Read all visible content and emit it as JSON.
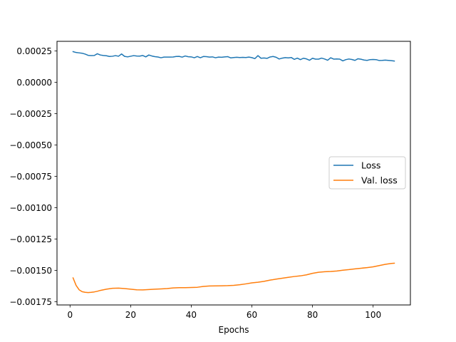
{
  "chart_data": {
    "type": "line",
    "title": "",
    "xlabel": "Epochs",
    "ylabel": "",
    "xlim": [
      -4.3,
      112.3
    ],
    "ylim": [
      -0.001776,
      0.000327
    ],
    "grid": false,
    "legend_position": "center-right",
    "x_ticks": [
      {
        "value": 0,
        "label": "0"
      },
      {
        "value": 20,
        "label": "20"
      },
      {
        "value": 40,
        "label": "40"
      },
      {
        "value": 60,
        "label": "60"
      },
      {
        "value": 80,
        "label": "80"
      },
      {
        "value": 100,
        "label": "100"
      }
    ],
    "y_ticks": [
      {
        "value": 0.00025,
        "label": "0.00025"
      },
      {
        "value": 0.0,
        "label": "0.00000"
      },
      {
        "value": -0.00025,
        "label": "−0.00025"
      },
      {
        "value": -0.0005,
        "label": "−0.00050"
      },
      {
        "value": -0.00075,
        "label": "−0.00075"
      },
      {
        "value": -0.001,
        "label": "−0.00100"
      },
      {
        "value": -0.00125,
        "label": "−0.00125"
      },
      {
        "value": -0.0015,
        "label": "−0.00150"
      },
      {
        "value": -0.00175,
        "label": "−0.00175"
      }
    ],
    "series": [
      {
        "name": "Loss",
        "color": "#1f77b4",
        "points": [
          [
            1,
            0.000245
          ],
          [
            2,
            0.000238
          ],
          [
            3,
            0.000235
          ],
          [
            4,
            0.000232
          ],
          [
            5,
            0.000225
          ],
          [
            6,
            0.000215
          ],
          [
            7,
            0.000213
          ],
          [
            8,
            0.000214
          ],
          [
            9,
            0.000228
          ],
          [
            10,
            0.000218
          ],
          [
            11,
            0.000214
          ],
          [
            12,
            0.000212
          ],
          [
            13,
            0.000206
          ],
          [
            14,
            0.000208
          ],
          [
            15,
            0.000213
          ],
          [
            16,
            0.000208
          ],
          [
            17,
            0.000226
          ],
          [
            18,
            0.000207
          ],
          [
            19,
            0.000203
          ],
          [
            20,
            0.000208
          ],
          [
            21,
            0.000213
          ],
          [
            22,
            0.00021
          ],
          [
            23,
            0.000209
          ],
          [
            24,
            0.000214
          ],
          [
            25,
            0.000203
          ],
          [
            26,
            0.000218
          ],
          [
            27,
            0.00021
          ],
          [
            28,
            0.000205
          ],
          [
            29,
            0.000202
          ],
          [
            30,
            0.000196
          ],
          [
            31,
            0.000201
          ],
          [
            32,
            0.000201
          ],
          [
            33,
            0.000201
          ],
          [
            34,
            0.000202
          ],
          [
            35,
            0.000206
          ],
          [
            36,
            0.000207
          ],
          [
            37,
            0.000201
          ],
          [
            38,
            0.00021
          ],
          [
            39,
            0.000204
          ],
          [
            40,
            0.000203
          ],
          [
            41,
            0.000196
          ],
          [
            42,
            0.000206
          ],
          [
            43,
            0.000196
          ],
          [
            44,
            0.000206
          ],
          [
            45,
            0.000205
          ],
          [
            46,
            0.000201
          ],
          [
            47,
            0.000203
          ],
          [
            48,
            0.000196
          ],
          [
            49,
            0.000201
          ],
          [
            50,
            0.0002
          ],
          [
            51,
            0.000203
          ],
          [
            52,
            0.000205
          ],
          [
            53,
            0.000195
          ],
          [
            54,
            0.000198
          ],
          [
            55,
            0.0002
          ],
          [
            56,
            0.000198
          ],
          [
            57,
            0.000199
          ],
          [
            58,
            0.000198
          ],
          [
            59,
            0.000201
          ],
          [
            60,
            0.000197
          ],
          [
            61,
            0.000189
          ],
          [
            62,
            0.000213
          ],
          [
            63,
            0.000192
          ],
          [
            64,
            0.000194
          ],
          [
            65,
            0.000191
          ],
          [
            66,
            0.000202
          ],
          [
            67,
            0.000206
          ],
          [
            68,
            0.0002
          ],
          [
            69,
            0.000186
          ],
          [
            70,
            0.000193
          ],
          [
            71,
            0.000197
          ],
          [
            72,
            0.000195
          ],
          [
            73,
            0.000198
          ],
          [
            74,
            0.000183
          ],
          [
            75,
            0.000193
          ],
          [
            76,
            0.000181
          ],
          [
            77,
            0.000192
          ],
          [
            78,
            0.000187
          ],
          [
            79,
            0.000176
          ],
          [
            80,
            0.000192
          ],
          [
            81,
            0.000185
          ],
          [
            82,
            0.000185
          ],
          [
            83,
            0.000193
          ],
          [
            84,
            0.000186
          ],
          [
            85,
            0.000176
          ],
          [
            86,
            0.000196
          ],
          [
            87,
            0.000185
          ],
          [
            88,
            0.000186
          ],
          [
            89,
            0.000185
          ],
          [
            90,
            0.000171
          ],
          [
            91,
            0.000181
          ],
          [
            92,
            0.000186
          ],
          [
            93,
            0.000182
          ],
          [
            94,
            0.000175
          ],
          [
            95,
            0.000188
          ],
          [
            96,
            0.000184
          ],
          [
            97,
            0.000178
          ],
          [
            98,
            0.000175
          ],
          [
            99,
            0.000181
          ],
          [
            100,
            0.000182
          ],
          [
            101,
            0.000181
          ],
          [
            102,
            0.000174
          ],
          [
            103,
            0.000175
          ],
          [
            104,
            0.000177
          ],
          [
            105,
            0.000175
          ],
          [
            106,
            0.000173
          ],
          [
            107,
            0.00017
          ]
        ]
      },
      {
        "name": "Val. loss",
        "color": "#ff7f0e",
        "points": [
          [
            1,
            -0.00156
          ],
          [
            2,
            -0.00162
          ],
          [
            3,
            -0.001655
          ],
          [
            4,
            -0.00167
          ],
          [
            5,
            -0.001675
          ],
          [
            6,
            -0.001677
          ],
          [
            7,
            -0.001675
          ],
          [
            8,
            -0.001672
          ],
          [
            9,
            -0.001667
          ],
          [
            10,
            -0.00166
          ],
          [
            12,
            -0.00165
          ],
          [
            14,
            -0.001643
          ],
          [
            16,
            -0.001642
          ],
          [
            18,
            -0.001645
          ],
          [
            20,
            -0.00165
          ],
          [
            22,
            -0.001655
          ],
          [
            24,
            -0.001656
          ],
          [
            26,
            -0.001653
          ],
          [
            28,
            -0.00165
          ],
          [
            30,
            -0.001648
          ],
          [
            32,
            -0.001645
          ],
          [
            34,
            -0.00164
          ],
          [
            36,
            -0.001638
          ],
          [
            38,
            -0.001638
          ],
          [
            40,
            -0.001637
          ],
          [
            42,
            -0.001635
          ],
          [
            44,
            -0.001628
          ],
          [
            46,
            -0.001625
          ],
          [
            48,
            -0.001624
          ],
          [
            50,
            -0.001623
          ],
          [
            52,
            -0.001622
          ],
          [
            54,
            -0.00162
          ],
          [
            56,
            -0.001615
          ],
          [
            58,
            -0.001608
          ],
          [
            60,
            -0.0016
          ],
          [
            62,
            -0.001595
          ],
          [
            64,
            -0.001588
          ],
          [
            66,
            -0.001578
          ],
          [
            68,
            -0.00157
          ],
          [
            70,
            -0.001563
          ],
          [
            72,
            -0.001556
          ],
          [
            74,
            -0.001549
          ],
          [
            76,
            -0.001544
          ],
          [
            78,
            -0.001536
          ],
          [
            80,
            -0.001524
          ],
          [
            82,
            -0.001515
          ],
          [
            84,
            -0.001511
          ],
          [
            86,
            -0.001509
          ],
          [
            88,
            -0.001505
          ],
          [
            90,
            -0.001499
          ],
          [
            92,
            -0.001494
          ],
          [
            94,
            -0.001488
          ],
          [
            96,
            -0.001483
          ],
          [
            98,
            -0.001478
          ],
          [
            100,
            -0.001472
          ],
          [
            102,
            -0.001462
          ],
          [
            104,
            -0.001452
          ],
          [
            106,
            -0.001445
          ],
          [
            107,
            -0.001443
          ]
        ]
      }
    ]
  }
}
